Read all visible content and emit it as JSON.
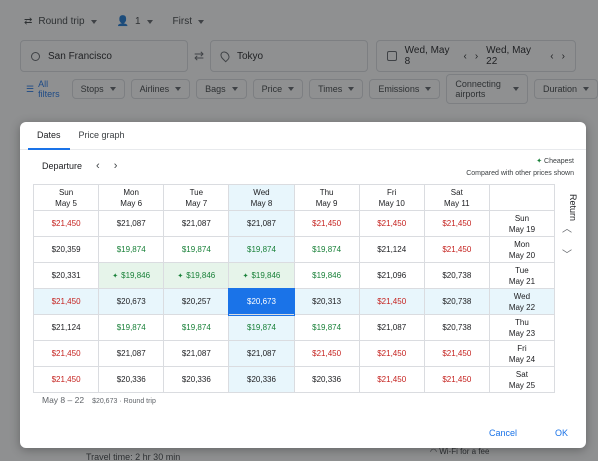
{
  "search": {
    "trip_type": "Round trip",
    "passengers": "1",
    "cabin": "First",
    "from": "San Francisco",
    "to": "Tokyo",
    "depart_date": "Wed, May 8",
    "return_date": "Wed, May 22"
  },
  "filters": {
    "all_filters": "All filters",
    "chips": [
      "Stops",
      "Airlines",
      "Bags",
      "Price",
      "Times",
      "Emissions",
      "Connecting airports",
      "Duration"
    ]
  },
  "background": {
    "travel_time": "Travel time: 2 hr 30 min",
    "wifi": "Wi-Fi for a fee"
  },
  "dialog": {
    "tabs": [
      "Dates",
      "Price graph"
    ],
    "departure_label": "Departure",
    "legend_cheapest": "Cheapest",
    "legend_note": "Compared with other prices shown",
    "return_label": "Return",
    "columns": [
      {
        "day": "Sun",
        "date": "May 5"
      },
      {
        "day": "Mon",
        "date": "May 6"
      },
      {
        "day": "Tue",
        "date": "May 7"
      },
      {
        "day": "Wed",
        "date": "May 8"
      },
      {
        "day": "Thu",
        "date": "May 9"
      },
      {
        "day": "Fri",
        "date": "May 10"
      },
      {
        "day": "Sat",
        "date": "May 11"
      }
    ],
    "rows": [
      {
        "day": "Sun",
        "date": "May 19",
        "prices": [
          "$21,450",
          "$21,087",
          "$21,087",
          "$21,087",
          "$21,450",
          "$21,450",
          "$21,450"
        ],
        "tones": [
          "red",
          "black",
          "black",
          "black",
          "red",
          "red",
          "red"
        ]
      },
      {
        "day": "Mon",
        "date": "May 20",
        "prices": [
          "$20,359",
          "$19,874",
          "$19,874",
          "$19,874",
          "$19,874",
          "$21,124",
          "$21,450"
        ],
        "tones": [
          "black",
          "green",
          "green",
          "green",
          "green",
          "black",
          "red"
        ]
      },
      {
        "day": "Tue",
        "date": "May 21",
        "prices": [
          "$20,331",
          "$19,846",
          "$19,846",
          "$19,846",
          "$19,846",
          "$21,096",
          "$20,738"
        ],
        "tones": [
          "black",
          "green",
          "green",
          "green",
          "green",
          "black",
          "black"
        ]
      },
      {
        "day": "Wed",
        "date": "May 22",
        "prices": [
          "$21,450",
          "$20,673",
          "$20,257",
          "$20,673",
          "$20,313",
          "$21,450",
          "$20,738"
        ],
        "tones": [
          "red",
          "black",
          "black",
          "selected",
          "black",
          "red",
          "black"
        ]
      },
      {
        "day": "Thu",
        "date": "May 23",
        "prices": [
          "$21,124",
          "$19,874",
          "$19,874",
          "$19,874",
          "$19,874",
          "$21,087",
          "$20,738"
        ],
        "tones": [
          "black",
          "green",
          "green",
          "green",
          "green",
          "black",
          "black"
        ]
      },
      {
        "day": "Fri",
        "date": "May 24",
        "prices": [
          "$21,450",
          "$21,087",
          "$21,087",
          "$21,087",
          "$21,450",
          "$21,450",
          "$21,450"
        ],
        "tones": [
          "red",
          "black",
          "black",
          "black",
          "red",
          "red",
          "red"
        ]
      },
      {
        "day": "Sat",
        "date": "May 25",
        "prices": [
          "$21,450",
          "$20,336",
          "$20,336",
          "$20,336",
          "$20,336",
          "$21,450",
          "$21,450"
        ],
        "tones": [
          "red",
          "black",
          "black",
          "black",
          "black",
          "red",
          "red"
        ]
      }
    ],
    "selected_range": "May 8 – 22",
    "selected_summary": "$20,673 · Round trip",
    "cancel_label": "Cancel",
    "ok_label": "OK"
  }
}
